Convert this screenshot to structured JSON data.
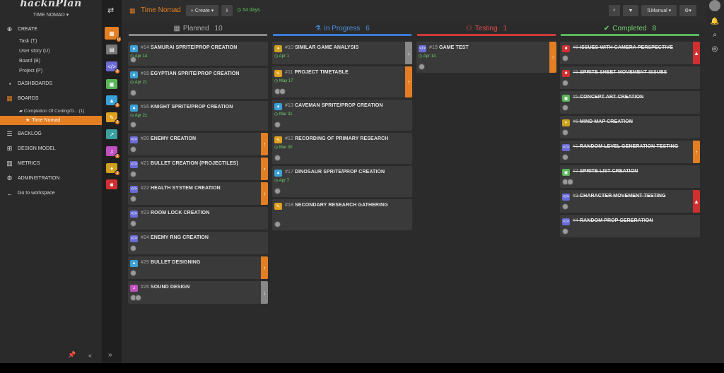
{
  "app": {
    "logo": "hacknPlan",
    "project": "TIME NOMAD ▾"
  },
  "sidebar": {
    "create": "CREATE",
    "create_items": [
      "Task (T)",
      "User story (U)",
      "Board (B)",
      "Project (P)"
    ],
    "dashboards": "DASHBOARDS",
    "boards": "BOARDS",
    "board_folder": "Completion Of Coding/D... (1)",
    "board_active": "Time Nomad",
    "backlog": "BACKLOG",
    "design_model": "DESIGN MODEL",
    "metrics": "METRICS",
    "administration": "ADMINISTRATION",
    "go_workspace": "Go to workspace"
  },
  "iconcol": {
    "badges": [
      "17",
      "6",
      "8",
      "2",
      "1",
      "1"
    ],
    "colors": [
      "#e47e22",
      "#888888",
      "#6b6bd6",
      "#5ab55a",
      "#3aa0d8",
      "#e0a020",
      "#3aa0a0",
      "#c050c0",
      "#d0a020",
      "#d03030"
    ]
  },
  "topbar": {
    "title": "Time Nomad",
    "create": "+ Create ▾",
    "info": "i",
    "days": "54 days",
    "sort": "Manual ▾"
  },
  "columns": [
    {
      "name": "Planned",
      "count": "10",
      "color": "#888888",
      "icon": "▦",
      "text": "#aaaaaa",
      "cards": [
        {
          "id": "#14",
          "title": "SAMURAI SPRITE/PROP CREATION",
          "date": "Apr 14",
          "type": "#3aa0d8",
          "glyph": "▲",
          "avatars": 1,
          "h": 34
        },
        {
          "id": "#15",
          "title": "EGYPTIAN SPRITE/PROP CREATION",
          "date": "Apr 21",
          "type": "#3aa0d8",
          "glyph": "▲",
          "avatars": 1,
          "h": 44
        },
        {
          "id": "#16",
          "title": "KNIGHT SPRITE/PROP CREATION",
          "date": "Apr 21",
          "type": "#3aa0d8",
          "glyph": "▲",
          "avatars": 1,
          "h": 42
        },
        {
          "id": "#20",
          "title": "ENEMY CREATION",
          "date": "",
          "type": "#6b6bd6",
          "glyph": "</>",
          "avatars": 1,
          "h": 32,
          "side": "#e47e22",
          "arrow": "↑"
        },
        {
          "id": "#21",
          "title": "BULLET CREATION (PROJECTILES)",
          "date": "",
          "type": "#6b6bd6",
          "glyph": "</>",
          "avatars": 1,
          "h": 32,
          "side": "#e47e22",
          "arrow": "↑"
        },
        {
          "id": "#22",
          "title": "HEALTH SYSTEM CREATION",
          "date": "",
          "type": "#6b6bd6",
          "glyph": "</>",
          "avatars": 1,
          "h": 32,
          "side": "#e47e22",
          "arrow": "↑"
        },
        {
          "id": "#23",
          "title": "ROOM LOCK CREATION",
          "date": "",
          "type": "#6b6bd6",
          "glyph": "</>",
          "avatars": 1,
          "h": 32
        },
        {
          "id": "#24",
          "title": "ENEMY RNG CREATION",
          "date": "",
          "type": "#6b6bd6",
          "glyph": "</>",
          "avatars": 1,
          "h": 32
        },
        {
          "id": "#25",
          "title": "BULLET DESIGNING",
          "date": "",
          "type": "#3aa0d8",
          "glyph": "▲",
          "avatars": 1,
          "h": 32,
          "side": "#e47e22",
          "arrow": "↑"
        },
        {
          "id": "#26",
          "title": "SOUND DESIGN",
          "date": "",
          "type": "#c050c0",
          "glyph": "♫",
          "avatars": 2,
          "h": 32,
          "side": "#888888",
          "arrow": "↓"
        }
      ]
    },
    {
      "name": "In Progress",
      "count": "6",
      "color": "#3a7bd5",
      "icon": "⚗",
      "text": "#4a8ee0",
      "cards": [
        {
          "id": "#10",
          "title": "SIMILAR GAME ANALYSIS",
          "date": "Apr 1",
          "type": "#d0a020",
          "glyph": "♦",
          "avatars": 0,
          "h": 32,
          "side": "#888888",
          "arrow": "↓"
        },
        {
          "id": "#11",
          "title": "PROJECT TIMETABLE",
          "date": "May 17",
          "type": "#e0a020",
          "glyph": "✎",
          "avatars": 2,
          "h": 44,
          "side": "#e47e22",
          "arrow": "↑"
        },
        {
          "id": "#13",
          "title": "CAVEMAN SPRITE/PROP CREATION",
          "date": "Mar 31",
          "type": "#3aa0d8",
          "glyph": "▲",
          "avatars": 1,
          "h": 44
        },
        {
          "id": "#12",
          "title": "RECORDING OF PRIMARY RESEARCH",
          "date": "Mar 30",
          "type": "#e0a020",
          "glyph": "✎",
          "avatars": 1,
          "h": 44
        },
        {
          "id": "#17",
          "title": "DINOSAUR SPRITE/PROP CREATION",
          "date": "Apr 7",
          "type": "#3aa0d8",
          "glyph": "▲",
          "avatars": 1,
          "h": 44
        },
        {
          "id": "#18",
          "title": "SECONDARY RESEARCH GATHERING",
          "date": "",
          "type": "#e0a020",
          "glyph": "✎",
          "avatars": 1,
          "h": 44
        }
      ]
    },
    {
      "name": "Testing",
      "count": "1",
      "color": "#d03a3a",
      "icon": "⚇",
      "text": "#e04a4a",
      "cards": [
        {
          "id": "#19",
          "title": "GAME TEST",
          "date": "Apr 14",
          "type": "#6b6bd6",
          "glyph": "</>",
          "avatars": 1,
          "h": 44,
          "side": "#e47e22",
          "arrow": "↑"
        }
      ]
    },
    {
      "name": "Completed",
      "count": "8",
      "color": "#5ab55a",
      "icon": "✔",
      "text": "#6fcf6f",
      "cards": [
        {
          "id": "#8",
          "title": "ISSUES WITH CAMERA PERSPECTIVE",
          "date": "",
          "type": "#d03030",
          "glyph": "■",
          "avatars": 1,
          "h": 32,
          "side": "#d03030",
          "arrow": "▲",
          "done": true
        },
        {
          "id": "#9",
          "title": "SPRITE SHEET MOVEMENT ISSUES",
          "date": "",
          "type": "#d03030",
          "glyph": "■",
          "avatars": 1,
          "h": 32,
          "done": true
        },
        {
          "id": "#5",
          "title": "CONCEPT ART CREATION",
          "date": "",
          "type": "#5ab55a",
          "glyph": "▣",
          "avatars": 1,
          "h": 32,
          "done": true
        },
        {
          "id": "#6",
          "title": "MIND MAP CREATION",
          "date": "",
          "type": "#d0a020",
          "glyph": "♦",
          "avatars": 1,
          "h": 32,
          "done": true
        },
        {
          "id": "#1",
          "title": "RANDOM LEVEL GENERATION TESTING",
          "date": "",
          "type": "#6b6bd6",
          "glyph": "</>",
          "avatars": 1,
          "h": 32,
          "side": "#e47e22",
          "arrow": "↑",
          "done": true
        },
        {
          "id": "#7",
          "title": "SPRITE LIST CREATION",
          "date": "",
          "type": "#5ab55a",
          "glyph": "▣",
          "avatars": 2,
          "h": 32,
          "done": true
        },
        {
          "id": "#3",
          "title": "CHARACTER MOVEMENT TESTING",
          "date": "",
          "type": "#6b6bd6",
          "glyph": "</>",
          "avatars": 1,
          "h": 32,
          "side": "#d03030",
          "arrow": "▲",
          "done": true
        },
        {
          "id": "#4",
          "title": "RANDOM PROP GERERATION",
          "date": "",
          "type": "#6b6bd6",
          "glyph": "</>",
          "avatars": 1,
          "h": 32,
          "done": true
        }
      ]
    }
  ]
}
